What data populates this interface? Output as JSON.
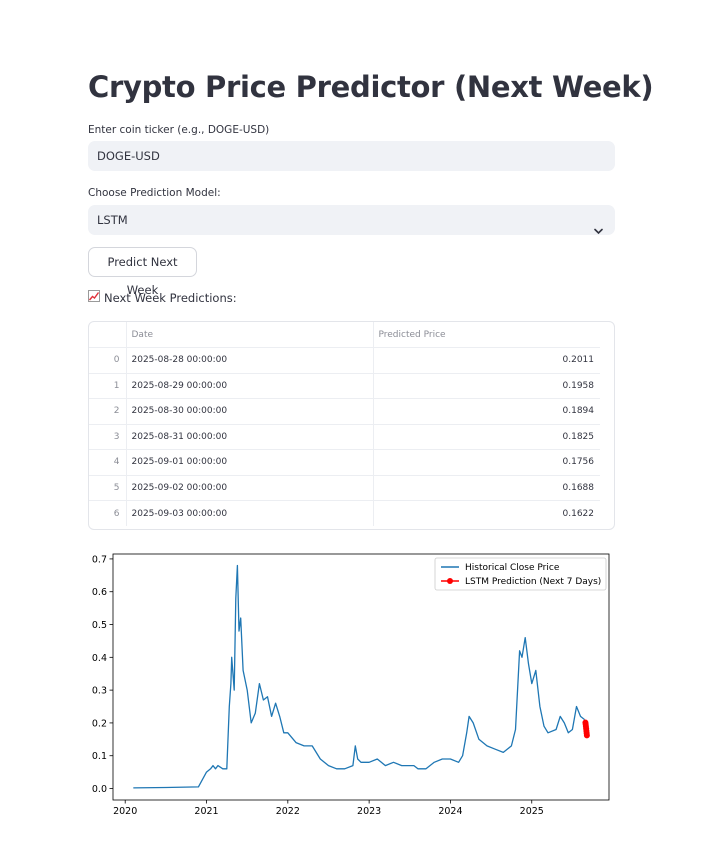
{
  "title": "Crypto Price Predictor (Next Week)",
  "ticker": {
    "label": "Enter coin ticker (e.g., DOGE-USD)",
    "value": "DOGE-USD"
  },
  "model": {
    "label": "Choose Prediction Model:",
    "selected": "LSTM"
  },
  "predict_button": "Predict Next Week",
  "predictions_header": "Next Week Predictions:",
  "table": {
    "columns": [
      "",
      "Date",
      "Predicted Price"
    ],
    "rows": [
      {
        "index": "0",
        "date": "2025-08-28 00:00:00",
        "price": "0.2011"
      },
      {
        "index": "1",
        "date": "2025-08-29 00:00:00",
        "price": "0.1958"
      },
      {
        "index": "2",
        "date": "2025-08-30 00:00:00",
        "price": "0.1894"
      },
      {
        "index": "3",
        "date": "2025-08-31 00:00:00",
        "price": "0.1825"
      },
      {
        "index": "4",
        "date": "2025-09-01 00:00:00",
        "price": "0.1756"
      },
      {
        "index": "5",
        "date": "2025-09-02 00:00:00",
        "price": "0.1688"
      },
      {
        "index": "6",
        "date": "2025-09-03 00:00:00",
        "price": "0.1622"
      }
    ]
  },
  "chart_data": {
    "type": "line",
    "title": "",
    "xlabel": "",
    "ylabel": "",
    "xlim": [
      2019.85,
      2025.95
    ],
    "ylim": [
      -0.035,
      0.715
    ],
    "xticks": [
      2020,
      2021,
      2022,
      2023,
      2024,
      2025
    ],
    "xtick_labels": [
      "2020",
      "2021",
      "2022",
      "2023",
      "2024",
      "2025"
    ],
    "yticks": [
      0.0,
      0.1,
      0.2,
      0.3,
      0.4,
      0.5,
      0.6,
      0.7
    ],
    "ytick_labels": [
      "0.0",
      "0.1",
      "0.2",
      "0.3",
      "0.4",
      "0.5",
      "0.6",
      "0.7"
    ],
    "legend_position": "upper right",
    "series": [
      {
        "name": "Historical Close Price",
        "color": "#1f77b4",
        "marker": "none",
        "x": [
          2020.1,
          2020.5,
          2020.9,
          2021.0,
          2021.05,
          2021.08,
          2021.11,
          2021.14,
          2021.2,
          2021.25,
          2021.28,
          2021.3,
          2021.31,
          2021.34,
          2021.36,
          2021.38,
          2021.4,
          2021.42,
          2021.45,
          2021.5,
          2021.55,
          2021.6,
          2021.65,
          2021.7,
          2021.75,
          2021.8,
          2021.85,
          2021.9,
          2021.95,
          2022.0,
          2022.1,
          2022.2,
          2022.3,
          2022.4,
          2022.5,
          2022.6,
          2022.7,
          2022.8,
          2022.83,
          2022.86,
          2022.9,
          2023.0,
          2023.1,
          2023.2,
          2023.3,
          2023.4,
          2023.5,
          2023.55,
          2023.6,
          2023.7,
          2023.8,
          2023.9,
          2024.0,
          2024.1,
          2024.15,
          2024.2,
          2024.23,
          2024.28,
          2024.35,
          2024.45,
          2024.55,
          2024.65,
          2024.75,
          2024.8,
          2024.85,
          2024.88,
          2024.92,
          2024.96,
          2025.0,
          2025.05,
          2025.1,
          2025.15,
          2025.2,
          2025.3,
          2025.35,
          2025.4,
          2025.45,
          2025.5,
          2025.55,
          2025.6,
          2025.65
        ],
        "y": [
          0.002,
          0.003,
          0.005,
          0.05,
          0.06,
          0.07,
          0.06,
          0.07,
          0.06,
          0.06,
          0.25,
          0.32,
          0.4,
          0.3,
          0.58,
          0.68,
          0.48,
          0.52,
          0.36,
          0.3,
          0.2,
          0.23,
          0.32,
          0.27,
          0.28,
          0.22,
          0.26,
          0.22,
          0.17,
          0.17,
          0.14,
          0.13,
          0.13,
          0.09,
          0.07,
          0.06,
          0.06,
          0.07,
          0.13,
          0.09,
          0.08,
          0.08,
          0.09,
          0.07,
          0.08,
          0.07,
          0.07,
          0.07,
          0.06,
          0.06,
          0.08,
          0.09,
          0.09,
          0.08,
          0.1,
          0.17,
          0.22,
          0.2,
          0.15,
          0.13,
          0.12,
          0.11,
          0.13,
          0.18,
          0.42,
          0.4,
          0.46,
          0.38,
          0.32,
          0.36,
          0.25,
          0.19,
          0.17,
          0.18,
          0.22,
          0.2,
          0.17,
          0.18,
          0.25,
          0.22,
          0.21
        ]
      },
      {
        "name": "LSTM Prediction (Next 7 Days)",
        "color": "#ff0000",
        "marker": "circle",
        "x": [
          2025.66,
          2025.663,
          2025.666,
          2025.669,
          2025.672,
          2025.675,
          2025.678
        ],
        "y": [
          0.2011,
          0.1958,
          0.1894,
          0.1825,
          0.1756,
          0.1688,
          0.1622
        ]
      }
    ]
  }
}
